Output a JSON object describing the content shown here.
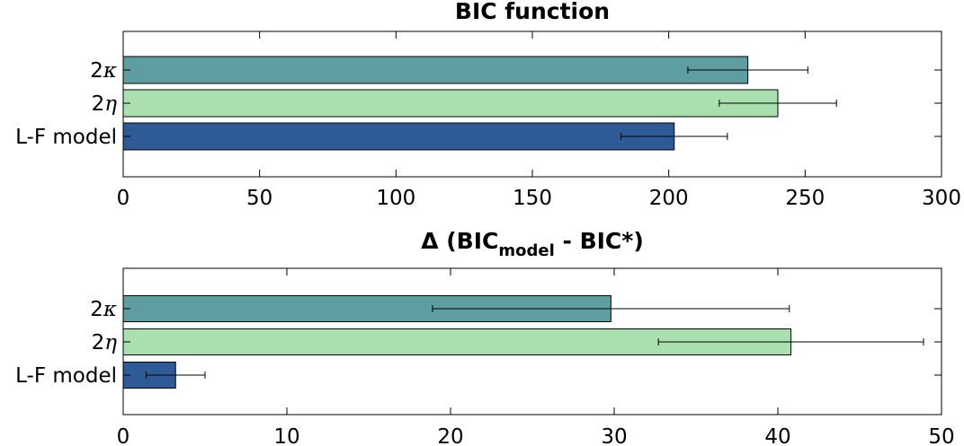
{
  "chart_data": [
    {
      "type": "bar",
      "orientation": "horizontal",
      "title": "BIC function",
      "categories": [
        "2κ",
        "2η",
        "L-F model"
      ],
      "category_labels": [
        {
          "main": "2",
          "symbol": "κ"
        },
        {
          "main": "2",
          "symbol": "η"
        },
        {
          "main": "L-F model",
          "symbol": ""
        }
      ],
      "values": [
        229,
        240,
        202
      ],
      "errors": [
        22,
        21.5,
        19.5
      ],
      "colors": [
        "#5f9ea0",
        "#aadfb0",
        "#2e5b97"
      ],
      "xlim": [
        0,
        300
      ],
      "xticks": [
        "0",
        "50",
        "100",
        "150",
        "200",
        "250",
        "300"
      ],
      "xlabel": "",
      "ylabel": "",
      "grid": false
    },
    {
      "type": "bar",
      "orientation": "horizontal",
      "title": "Δ (BIC",
      "title_sub": "model",
      "title_end": " - BIC*)",
      "categories": [
        "2κ",
        "2η",
        "L-F model"
      ],
      "category_labels": [
        {
          "main": "2",
          "symbol": "κ"
        },
        {
          "main": "2",
          "symbol": "η"
        },
        {
          "main": "L-F model",
          "symbol": ""
        }
      ],
      "values": [
        29.8,
        40.8,
        3.2
      ],
      "errors": [
        10.9,
        8.1,
        1.8
      ],
      "colors": [
        "#5f9ea0",
        "#aadfb0",
        "#2e5b97"
      ],
      "xlim": [
        0,
        50
      ],
      "xticks": [
        "0",
        "10",
        "20",
        "30",
        "40",
        "50"
      ],
      "xlabel": "",
      "ylabel": "",
      "grid": false
    }
  ]
}
